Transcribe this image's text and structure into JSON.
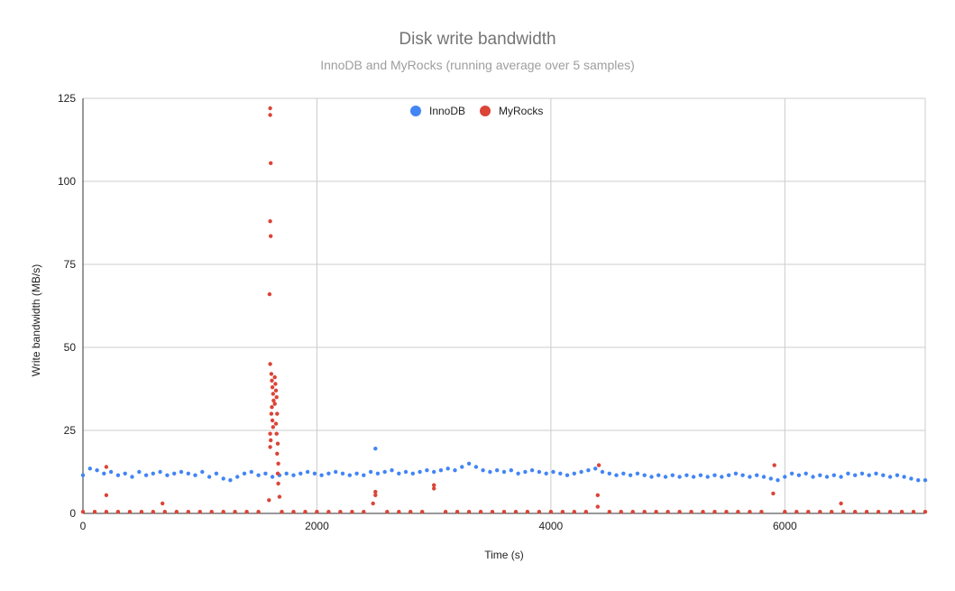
{
  "chart_data": {
    "type": "scatter",
    "title": "Disk write bandwidth",
    "subtitle": "InnoDB and MyRocks (running average over 5 samples)",
    "xlabel": "Time (s)",
    "ylabel": "Write bandwidth (MB/s)",
    "xlim": [
      0,
      7200
    ],
    "ylim": [
      0,
      125
    ],
    "x_ticks": [
      0,
      2000,
      4000,
      6000
    ],
    "y_ticks": [
      0,
      25,
      50,
      75,
      100,
      125
    ],
    "grid": true,
    "legend": "top-center",
    "series": [
      {
        "name": "InnoDB",
        "color": "#4285f4",
        "points": [
          [
            0,
            11.5
          ],
          [
            60,
            13.5
          ],
          [
            120,
            13
          ],
          [
            180,
            12
          ],
          [
            240,
            12.5
          ],
          [
            300,
            11.5
          ],
          [
            360,
            12
          ],
          [
            420,
            11
          ],
          [
            480,
            12.5
          ],
          [
            540,
            11.5
          ],
          [
            600,
            12
          ],
          [
            660,
            12.5
          ],
          [
            720,
            11.5
          ],
          [
            780,
            12
          ],
          [
            840,
            12.5
          ],
          [
            900,
            12
          ],
          [
            960,
            11.5
          ],
          [
            1020,
            12.5
          ],
          [
            1080,
            11
          ],
          [
            1140,
            12
          ],
          [
            1200,
            10.5
          ],
          [
            1260,
            10
          ],
          [
            1320,
            11
          ],
          [
            1380,
            12
          ],
          [
            1440,
            12.5
          ],
          [
            1500,
            11.5
          ],
          [
            1560,
            12
          ],
          [
            1620,
            11
          ],
          [
            1680,
            11.5
          ],
          [
            1740,
            12
          ],
          [
            1800,
            11.5
          ],
          [
            1860,
            12
          ],
          [
            1920,
            12.5
          ],
          [
            1980,
            12
          ],
          [
            2040,
            11.5
          ],
          [
            2100,
            12
          ],
          [
            2160,
            12.5
          ],
          [
            2220,
            12
          ],
          [
            2280,
            11.5
          ],
          [
            2340,
            12
          ],
          [
            2400,
            11.5
          ],
          [
            2460,
            12.5
          ],
          [
            2500,
            19.5
          ],
          [
            2520,
            12
          ],
          [
            2580,
            12.5
          ],
          [
            2640,
            13
          ],
          [
            2700,
            12
          ],
          [
            2760,
            12.5
          ],
          [
            2820,
            12
          ],
          [
            2880,
            12.5
          ],
          [
            2940,
            13
          ],
          [
            3000,
            12.5
          ],
          [
            3060,
            13
          ],
          [
            3120,
            13.5
          ],
          [
            3180,
            13
          ],
          [
            3240,
            14
          ],
          [
            3300,
            15
          ],
          [
            3360,
            14
          ],
          [
            3420,
            13
          ],
          [
            3480,
            12.5
          ],
          [
            3540,
            13
          ],
          [
            3600,
            12.5
          ],
          [
            3660,
            13
          ],
          [
            3720,
            12
          ],
          [
            3780,
            12.5
          ],
          [
            3840,
            13
          ],
          [
            3900,
            12.5
          ],
          [
            3960,
            12
          ],
          [
            4020,
            12.5
          ],
          [
            4080,
            12
          ],
          [
            4140,
            11.5
          ],
          [
            4200,
            12
          ],
          [
            4260,
            12.5
          ],
          [
            4320,
            13
          ],
          [
            4380,
            13.5
          ],
          [
            4440,
            12.5
          ],
          [
            4500,
            12
          ],
          [
            4560,
            11.5
          ],
          [
            4620,
            12
          ],
          [
            4680,
            11.5
          ],
          [
            4740,
            12
          ],
          [
            4800,
            11.5
          ],
          [
            4860,
            11
          ],
          [
            4920,
            11.5
          ],
          [
            4980,
            11
          ],
          [
            5040,
            11.5
          ],
          [
            5100,
            11
          ],
          [
            5160,
            11.5
          ],
          [
            5220,
            11
          ],
          [
            5280,
            11.5
          ],
          [
            5340,
            11
          ],
          [
            5400,
            11.5
          ],
          [
            5460,
            11
          ],
          [
            5520,
            11.5
          ],
          [
            5580,
            12
          ],
          [
            5640,
            11.5
          ],
          [
            5700,
            11
          ],
          [
            5760,
            11.5
          ],
          [
            5820,
            11
          ],
          [
            5880,
            10.5
          ],
          [
            5940,
            10
          ],
          [
            6000,
            11
          ],
          [
            6060,
            12
          ],
          [
            6120,
            11.5
          ],
          [
            6180,
            12
          ],
          [
            6240,
            11
          ],
          [
            6300,
            11.5
          ],
          [
            6360,
            11
          ],
          [
            6420,
            11.5
          ],
          [
            6480,
            11
          ],
          [
            6540,
            12
          ],
          [
            6600,
            11.5
          ],
          [
            6660,
            12
          ],
          [
            6720,
            11.5
          ],
          [
            6780,
            12
          ],
          [
            6840,
            11.5
          ],
          [
            6900,
            11
          ],
          [
            6960,
            11.5
          ],
          [
            7020,
            11
          ],
          [
            7080,
            10.5
          ],
          [
            7140,
            10
          ],
          [
            7200,
            10
          ]
        ]
      },
      {
        "name": "MyRocks",
        "color": "#db4437",
        "points": [
          [
            0,
            0.5
          ],
          [
            100,
            0.5
          ],
          [
            200,
            0.5
          ],
          [
            200,
            5.5
          ],
          [
            200,
            14
          ],
          [
            300,
            0.5
          ],
          [
            400,
            0.5
          ],
          [
            500,
            0.5
          ],
          [
            600,
            0.5
          ],
          [
            680,
            3
          ],
          [
            700,
            0.5
          ],
          [
            800,
            0.5
          ],
          [
            900,
            0.5
          ],
          [
            1000,
            0.5
          ],
          [
            1100,
            0.5
          ],
          [
            1200,
            0.5
          ],
          [
            1300,
            0.5
          ],
          [
            1400,
            0.5
          ],
          [
            1500,
            0.5
          ],
          [
            1590,
            4
          ],
          [
            1600,
            122
          ],
          [
            1600,
            120
          ],
          [
            1605,
            105.5
          ],
          [
            1600,
            88
          ],
          [
            1605,
            83.5
          ],
          [
            1595,
            66
          ],
          [
            1600,
            45
          ],
          [
            1610,
            42
          ],
          [
            1615,
            40
          ],
          [
            1620,
            38
          ],
          [
            1625,
            36
          ],
          [
            1630,
            34
          ],
          [
            1615,
            32
          ],
          [
            1610,
            30
          ],
          [
            1620,
            28
          ],
          [
            1625,
            26
          ],
          [
            1600,
            24
          ],
          [
            1605,
            22
          ],
          [
            1600,
            20
          ],
          [
            1640,
            41
          ],
          [
            1645,
            39
          ],
          [
            1650,
            37
          ],
          [
            1655,
            35
          ],
          [
            1640,
            33
          ],
          [
            1660,
            30
          ],
          [
            1650,
            27
          ],
          [
            1655,
            24
          ],
          [
            1665,
            21
          ],
          [
            1660,
            18
          ],
          [
            1670,
            15
          ],
          [
            1665,
            12
          ],
          [
            1670,
            9
          ],
          [
            1680,
            5
          ],
          [
            1700,
            0.5
          ],
          [
            1800,
            0.5
          ],
          [
            1900,
            0.5
          ],
          [
            2000,
            0.5
          ],
          [
            2100,
            0.5
          ],
          [
            2200,
            0.5
          ],
          [
            2300,
            0.5
          ],
          [
            2400,
            0.5
          ],
          [
            2480,
            3
          ],
          [
            2500,
            5.5
          ],
          [
            2500,
            6.5
          ],
          [
            2600,
            0.5
          ],
          [
            2700,
            0.5
          ],
          [
            2800,
            0.5
          ],
          [
            2900,
            0.5
          ],
          [
            3000,
            7.5
          ],
          [
            3000,
            8.5
          ],
          [
            3100,
            0.5
          ],
          [
            3200,
            0.5
          ],
          [
            3300,
            0.5
          ],
          [
            3400,
            0.5
          ],
          [
            3500,
            0.5
          ],
          [
            3600,
            0.5
          ],
          [
            3700,
            0.5
          ],
          [
            3800,
            0.5
          ],
          [
            3900,
            0.5
          ],
          [
            4000,
            0.5
          ],
          [
            4100,
            0.5
          ],
          [
            4200,
            0.5
          ],
          [
            4300,
            0.5
          ],
          [
            4400,
            5.5
          ],
          [
            4410,
            14.5
          ],
          [
            4400,
            2
          ],
          [
            4500,
            0.5
          ],
          [
            4600,
            0.5
          ],
          [
            4700,
            0.5
          ],
          [
            4800,
            0.5
          ],
          [
            4900,
            0.5
          ],
          [
            5000,
            0.5
          ],
          [
            5100,
            0.5
          ],
          [
            5200,
            0.5
          ],
          [
            5300,
            0.5
          ],
          [
            5400,
            0.5
          ],
          [
            5500,
            0.5
          ],
          [
            5600,
            0.5
          ],
          [
            5700,
            0.5
          ],
          [
            5800,
            0.5
          ],
          [
            5900,
            6
          ],
          [
            5910,
            14.5
          ],
          [
            6000,
            0.5
          ],
          [
            6100,
            0.5
          ],
          [
            6200,
            0.5
          ],
          [
            6300,
            0.5
          ],
          [
            6400,
            0.5
          ],
          [
            6480,
            3
          ],
          [
            6500,
            0.5
          ],
          [
            6600,
            0.5
          ],
          [
            6700,
            0.5
          ],
          [
            6800,
            0.5
          ],
          [
            6900,
            0.5
          ],
          [
            7000,
            0.5
          ],
          [
            7100,
            0.5
          ],
          [
            7200,
            0.5
          ]
        ]
      }
    ]
  }
}
